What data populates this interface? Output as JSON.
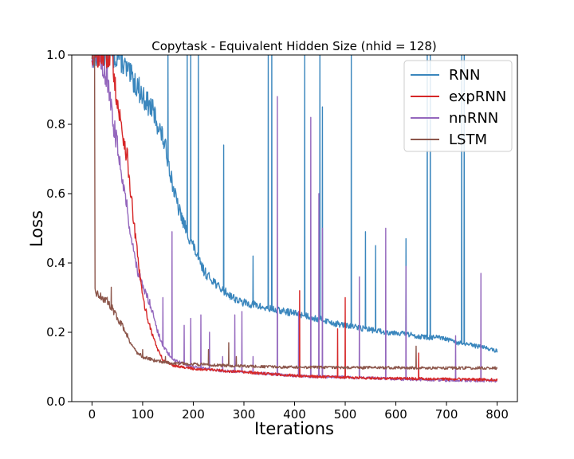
{
  "chart_data": {
    "type": "line",
    "title": "Copytask - Equivalent Hidden Size (nhid = 128)",
    "xlabel": "Iterations",
    "ylabel": "Loss",
    "xlim": [
      -40,
      840
    ],
    "ylim": [
      0.0,
      1.0
    ],
    "xticks": [
      0,
      100,
      200,
      300,
      400,
      500,
      600,
      700,
      800
    ],
    "yticks": [
      0.0,
      0.2,
      0.4,
      0.6,
      0.8,
      1.0
    ],
    "xtick_labels": [
      "0",
      "100",
      "200",
      "300",
      "400",
      "500",
      "600",
      "700",
      "800"
    ],
    "ytick_labels": [
      "0.0",
      "0.2",
      "0.4",
      "0.6",
      "0.8",
      "1.0"
    ],
    "legend_position": "top-right",
    "series": [
      {
        "name": "RNN",
        "color": "#3a86bd",
        "x": [
          0,
          40,
          55,
          60,
          70,
          80,
          90,
          100,
          110,
          120,
          130,
          140,
          150,
          160,
          170,
          180,
          190,
          200,
          210,
          220,
          230,
          240,
          250,
          260,
          270,
          280,
          290,
          300,
          320,
          340,
          360,
          380,
          400,
          420,
          440,
          460,
          480,
          500,
          520,
          540,
          560,
          580,
          600,
          620,
          640,
          660,
          680,
          700,
          720,
          740,
          760,
          780,
          800
        ],
        "y": [
          1.0,
          1.0,
          1.0,
          0.98,
          0.95,
          0.93,
          0.91,
          0.88,
          0.86,
          0.84,
          0.8,
          0.76,
          0.7,
          0.62,
          0.56,
          0.52,
          0.48,
          0.45,
          0.41,
          0.38,
          0.36,
          0.35,
          0.33,
          0.32,
          0.31,
          0.3,
          0.29,
          0.285,
          0.28,
          0.27,
          0.265,
          0.26,
          0.255,
          0.25,
          0.24,
          0.235,
          0.225,
          0.22,
          0.215,
          0.21,
          0.205,
          0.2,
          0.2,
          0.195,
          0.19,
          0.185,
          0.185,
          0.18,
          0.17,
          0.165,
          0.16,
          0.155,
          0.145
        ],
        "spikes": [
          [
            150,
            1.0
          ],
          [
            188,
            1.0
          ],
          [
            195,
            1.0
          ],
          [
            210,
            1.0
          ],
          [
            260,
            0.74
          ],
          [
            318,
            0.42
          ],
          [
            348,
            1.0
          ],
          [
            355,
            1.0
          ],
          [
            420,
            1.0
          ],
          [
            450,
            1.0
          ],
          [
            455,
            0.85
          ],
          [
            512,
            1.0
          ],
          [
            540,
            0.49
          ],
          [
            560,
            0.45
          ],
          [
            620,
            0.47
          ],
          [
            662,
            1.0
          ],
          [
            668,
            1.0
          ],
          [
            730,
            1.0
          ],
          [
            735,
            1.0
          ]
        ]
      },
      {
        "name": "expRNN",
        "color": "#d62728",
        "x": [
          0,
          40,
          50,
          60,
          70,
          80,
          90,
          100,
          110,
          120,
          130,
          140,
          160,
          180,
          200,
          250,
          300,
          350,
          400,
          450,
          500,
          550,
          600,
          650,
          700,
          750,
          800
        ],
        "y": [
          1.0,
          1.0,
          0.86,
          0.78,
          0.7,
          0.55,
          0.42,
          0.3,
          0.24,
          0.19,
          0.15,
          0.12,
          0.105,
          0.1,
          0.095,
          0.09,
          0.085,
          0.08,
          0.075,
          0.072,
          0.07,
          0.068,
          0.067,
          0.066,
          0.065,
          0.064,
          0.063
        ],
        "spikes": [
          [
            410,
            0.32
          ],
          [
            485,
            0.21
          ],
          [
            500,
            0.3
          ],
          [
            645,
            0.14
          ]
        ]
      },
      {
        "name": "nnRNN",
        "color": "#9467bd",
        "x": [
          0,
          5,
          10,
          20,
          30,
          40,
          50,
          60,
          70,
          80,
          90,
          100,
          110,
          120,
          130,
          140,
          150,
          160,
          180,
          200,
          250,
          300,
          350,
          400,
          450,
          500,
          550,
          600,
          650,
          700,
          750,
          800
        ],
        "y": [
          1.0,
          1.0,
          1.0,
          0.98,
          0.93,
          0.82,
          0.74,
          0.65,
          0.55,
          0.45,
          0.38,
          0.33,
          0.3,
          0.26,
          0.2,
          0.16,
          0.14,
          0.12,
          0.11,
          0.1,
          0.09,
          0.085,
          0.08,
          0.075,
          0.072,
          0.07,
          0.068,
          0.065,
          0.063,
          0.062,
          0.061,
          0.06
        ],
        "spikes": [
          [
            140,
            0.3
          ],
          [
            158,
            0.49
          ],
          [
            182,
            0.22
          ],
          [
            195,
            0.24
          ],
          [
            215,
            0.25
          ],
          [
            232,
            0.2
          ],
          [
            258,
            0.13
          ],
          [
            282,
            0.25
          ],
          [
            296,
            0.26
          ],
          [
            318,
            0.13
          ],
          [
            366,
            0.88
          ],
          [
            408,
            0.26
          ],
          [
            432,
            0.82
          ],
          [
            448,
            0.6
          ],
          [
            455,
            0.5
          ],
          [
            528,
            0.36
          ],
          [
            580,
            0.5
          ],
          [
            620,
            0.39
          ],
          [
            718,
            0.19
          ],
          [
            768,
            0.37
          ]
        ]
      },
      {
        "name": "LSTM",
        "color": "#8c564b",
        "x": [
          0,
          5,
          6,
          10,
          20,
          30,
          40,
          50,
          60,
          70,
          80,
          90,
          100,
          120,
          140,
          160,
          180,
          200,
          250,
          300,
          350,
          400,
          450,
          500,
          550,
          600,
          650,
          700,
          750,
          800
        ],
        "y": [
          1.0,
          1.0,
          0.33,
          0.31,
          0.3,
          0.29,
          0.27,
          0.24,
          0.22,
          0.19,
          0.16,
          0.14,
          0.13,
          0.12,
          0.115,
          0.11,
          0.11,
          0.108,
          0.105,
          0.102,
          0.1,
          0.099,
          0.099,
          0.098,
          0.098,
          0.098,
          0.097,
          0.097,
          0.097,
          0.097
        ],
        "spikes": [
          [
            38,
            0.33
          ],
          [
            100,
            0.15
          ],
          [
            145,
            0.13
          ],
          [
            230,
            0.15
          ],
          [
            270,
            0.17
          ],
          [
            285,
            0.13
          ],
          [
            640,
            0.16
          ]
        ]
      }
    ]
  }
}
